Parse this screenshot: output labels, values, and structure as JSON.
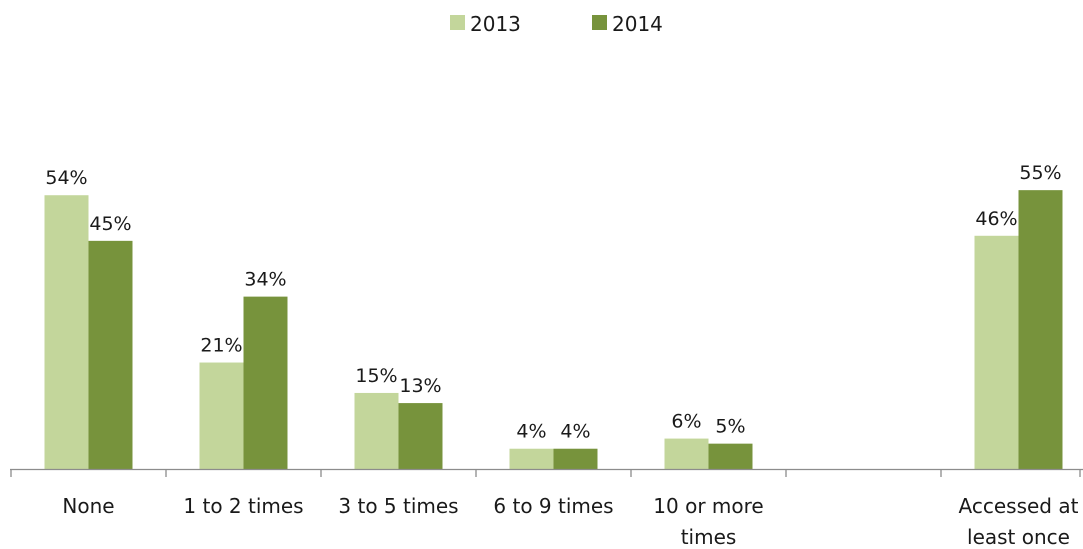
{
  "chart_data": {
    "type": "bar",
    "title": "",
    "xlabel": "",
    "ylabel": "",
    "ylim": [
      0,
      60
    ],
    "grid": false,
    "legend_position": "top-center",
    "categories": [
      [
        "None"
      ],
      [
        "1 to 2 times"
      ],
      [
        "3 to 5 times"
      ],
      [
        "6 to 9 times"
      ],
      [
        "10 or more",
        "times"
      ],
      [
        ""
      ],
      [
        "Accessed at",
        "least once"
      ]
    ],
    "series": [
      {
        "name": "2013",
        "color": "#c3d69b",
        "values": [
          54,
          21,
          15,
          4,
          6,
          null,
          46
        ],
        "labels": [
          "54%",
          "21%",
          "15%",
          "4%",
          "6%",
          "",
          "46%"
        ]
      },
      {
        "name": "2014",
        "color": "#77933c",
        "values": [
          45,
          34,
          13,
          4,
          5,
          null,
          55
        ],
        "labels": [
          "45%",
          "34%",
          "13%",
          "4%",
          "5%",
          "",
          "55%"
        ]
      }
    ]
  }
}
